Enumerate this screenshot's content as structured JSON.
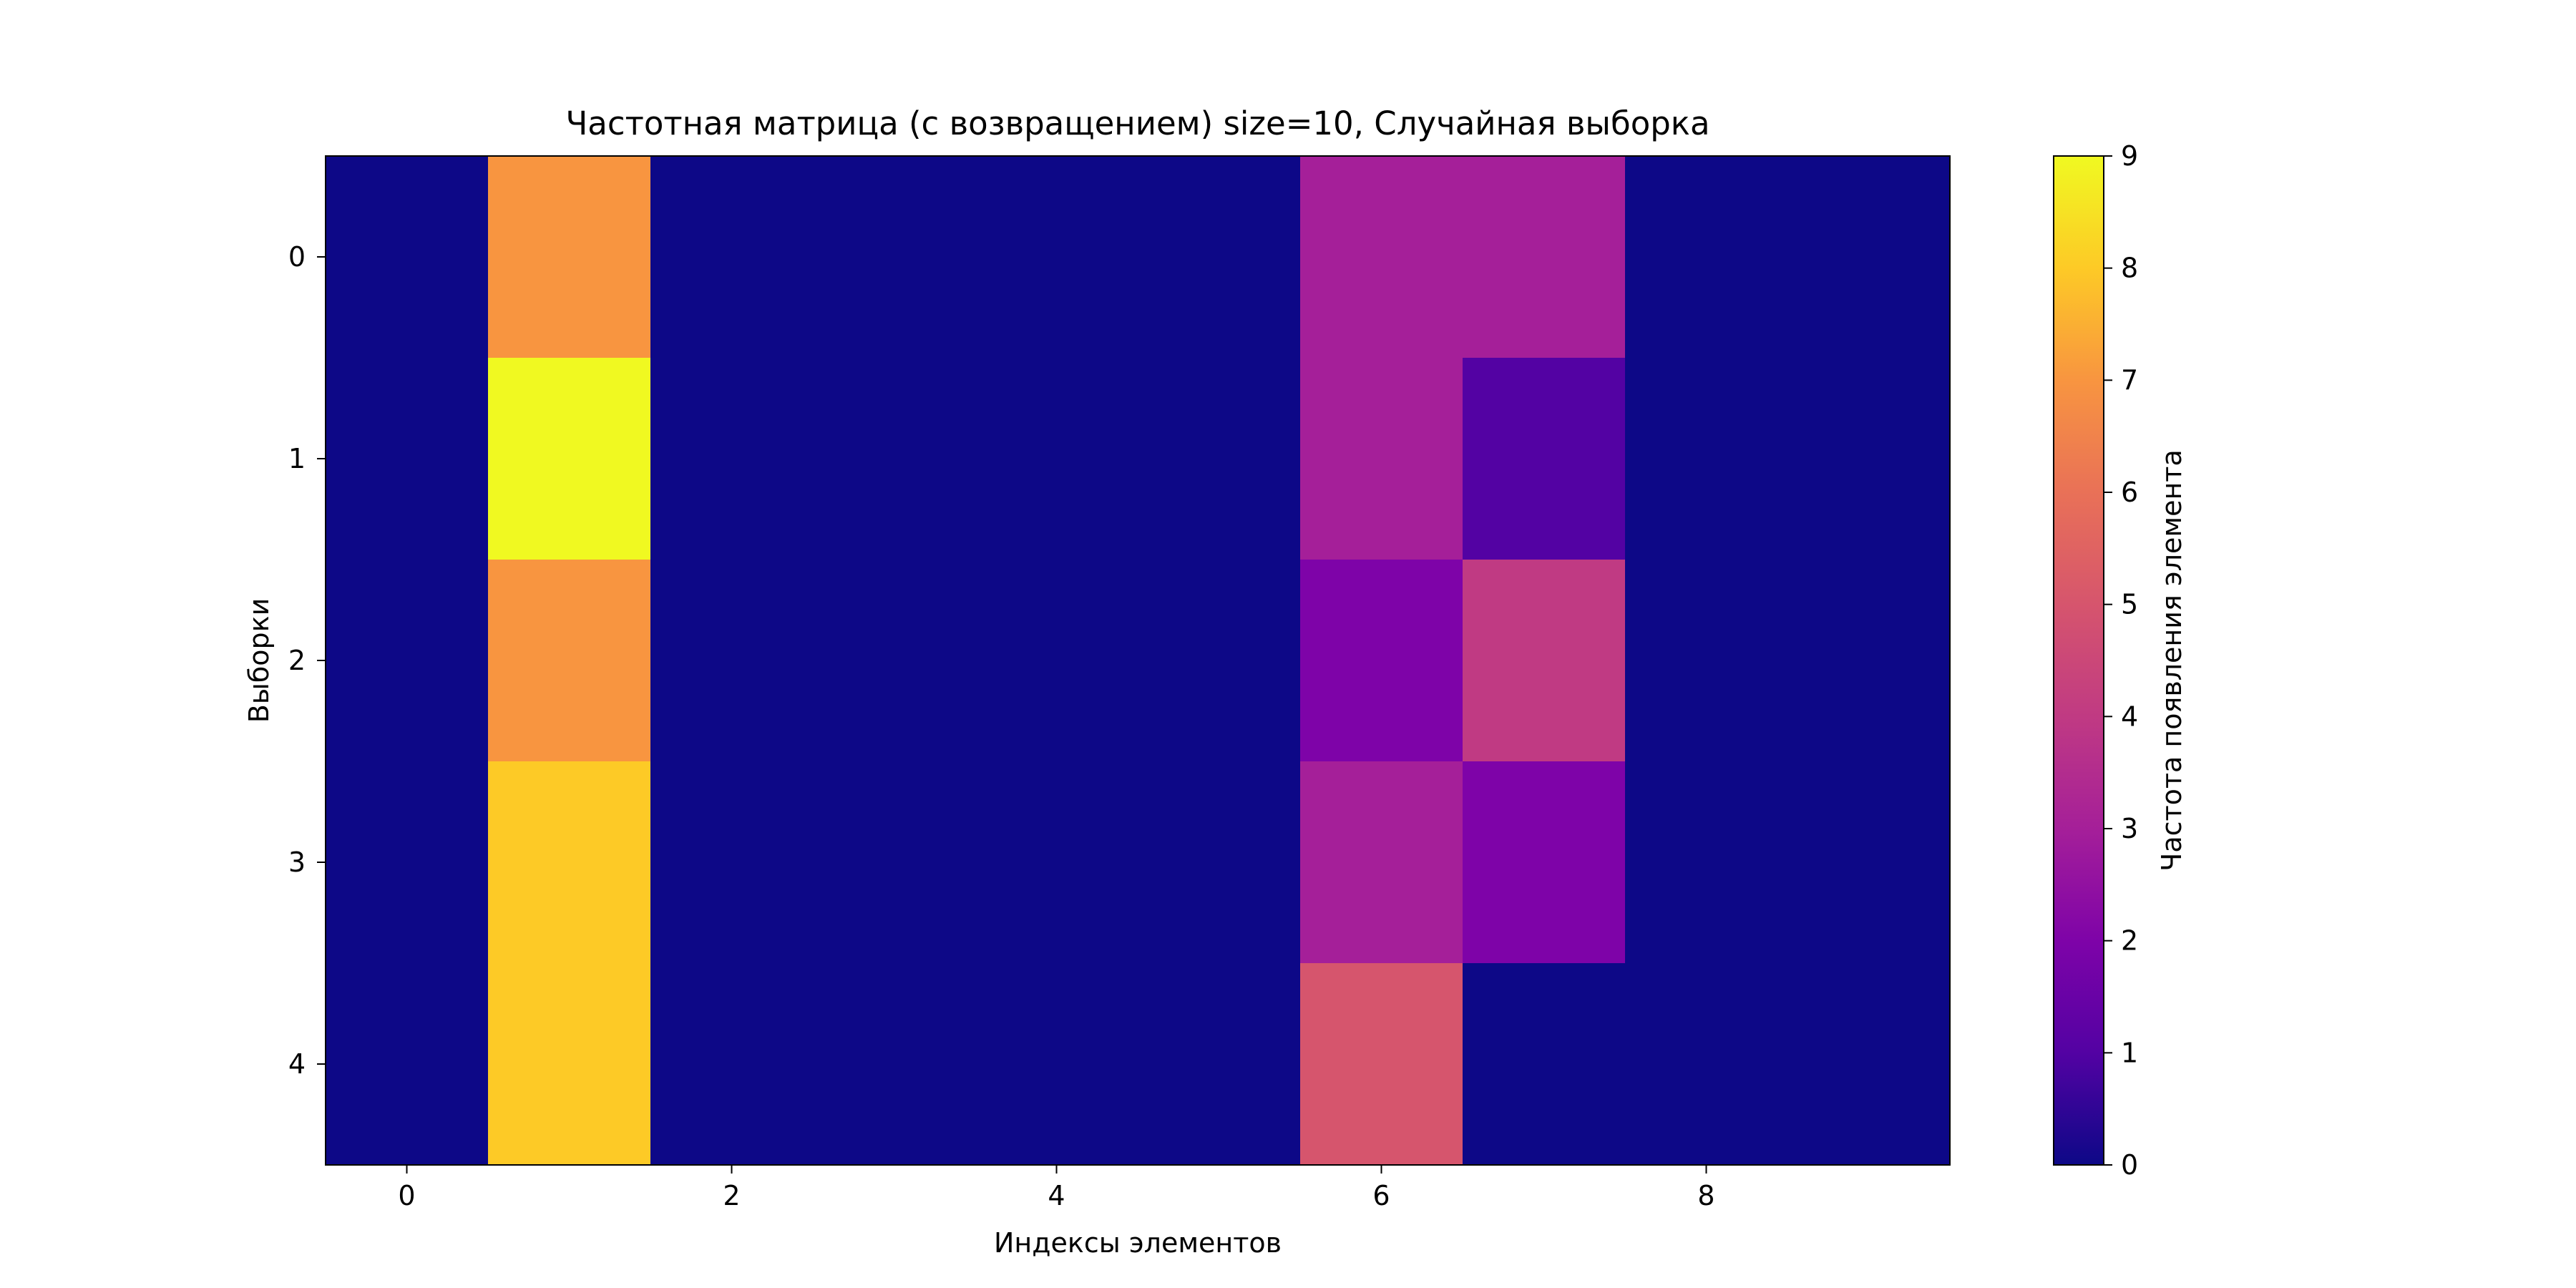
{
  "chart_data": {
    "type": "heatmap",
    "title": "Частотная матрица (с возвращением) size=10, Случайная выборка",
    "xlabel": "Индексы элементов",
    "ylabel": "Выборки",
    "colorbar_label": "Частота появления элемента",
    "colormap": "plasma",
    "x_ticks": [
      "0",
      "2",
      "4",
      "6",
      "8"
    ],
    "y_ticks": [
      "0",
      "1",
      "2",
      "3",
      "4"
    ],
    "colorbar_ticks": [
      "0",
      "1",
      "2",
      "3",
      "4",
      "5",
      "6",
      "7",
      "8",
      "9"
    ],
    "color_range": [
      0,
      9
    ],
    "x_range": [
      0,
      9
    ],
    "y_range": [
      0,
      4
    ],
    "grid": false,
    "matrix": [
      [
        0,
        7,
        0,
        0,
        0,
        0,
        3,
        3,
        0,
        0
      ],
      [
        0,
        9,
        0,
        0,
        0,
        0,
        3,
        1,
        0,
        0
      ],
      [
        0,
        7,
        0,
        0,
        0,
        0,
        2,
        4,
        0,
        0
      ],
      [
        0,
        8,
        0,
        0,
        0,
        0,
        3,
        2,
        0,
        0
      ],
      [
        0,
        8,
        0,
        0,
        0,
        0,
        5,
        0,
        0,
        0
      ]
    ]
  }
}
